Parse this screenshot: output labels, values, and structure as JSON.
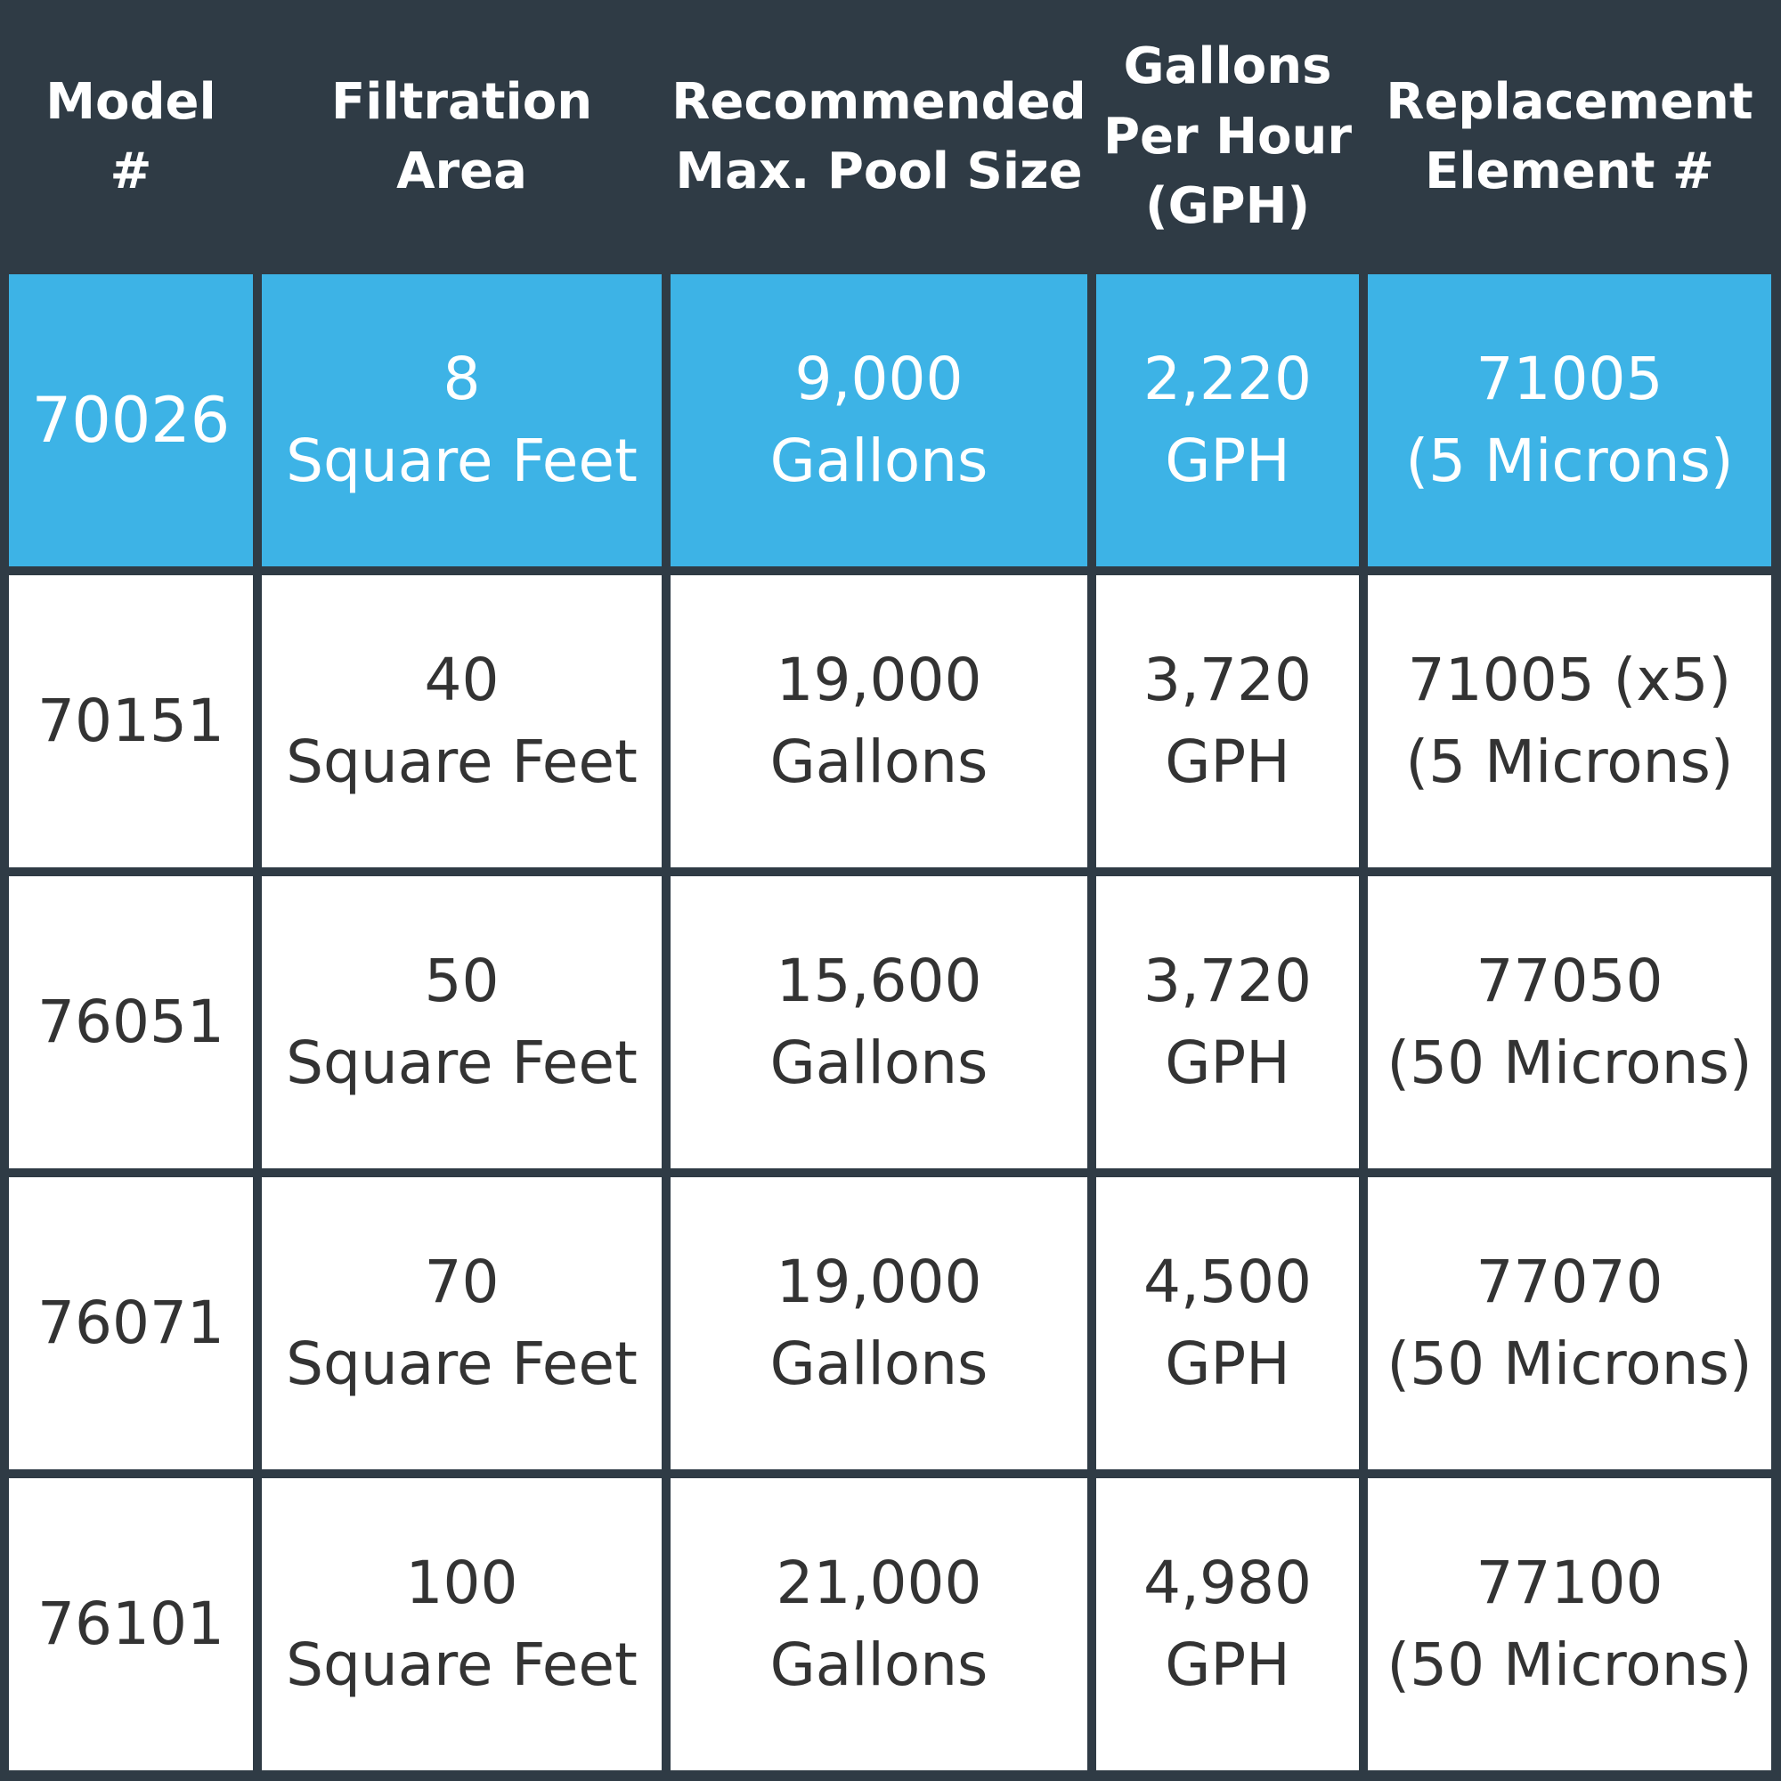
{
  "table": {
    "header": [
      [
        "Model",
        "#"
      ],
      [
        "Filtration",
        "Area"
      ],
      [
        "Recommended",
        "Max. Pool Size"
      ],
      [
        "Gallons",
        "Per Hour",
        "(GPH)"
      ],
      [
        "Replacement",
        "Element #"
      ]
    ],
    "rows": [
      [
        [
          "70026"
        ],
        [
          "8",
          "Square Feet"
        ],
        [
          "9,000",
          "Gallons"
        ],
        [
          "2,220",
          "GPH"
        ],
        [
          "71005",
          "(5 Microns)"
        ]
      ],
      [
        [
          "70151"
        ],
        [
          "40",
          "Square Feet"
        ],
        [
          "19,000",
          "Gallons"
        ],
        [
          "3,720",
          "GPH"
        ],
        [
          "71005 (x5)",
          "(5 Microns)"
        ]
      ],
      [
        [
          "76051"
        ],
        [
          "50",
          "Square Feet"
        ],
        [
          "15,600",
          "Gallons"
        ],
        [
          "3,720",
          "GPH"
        ],
        [
          "77050",
          "(50 Microns)"
        ]
      ],
      [
        [
          "76071"
        ],
        [
          "70",
          "Square Feet"
        ],
        [
          "19,000",
          "Gallons"
        ],
        [
          "4,500",
          "GPH"
        ],
        [
          "77070",
          "(50 Microns)"
        ]
      ],
      [
        [
          "76101"
        ],
        [
          "100",
          "Square Feet"
        ],
        [
          "21,000",
          "Gallons"
        ],
        [
          "4,980",
          "GPH"
        ],
        [
          "77100",
          "(50 Microns)"
        ]
      ]
    ],
    "highlighted_row": 0
  }
}
